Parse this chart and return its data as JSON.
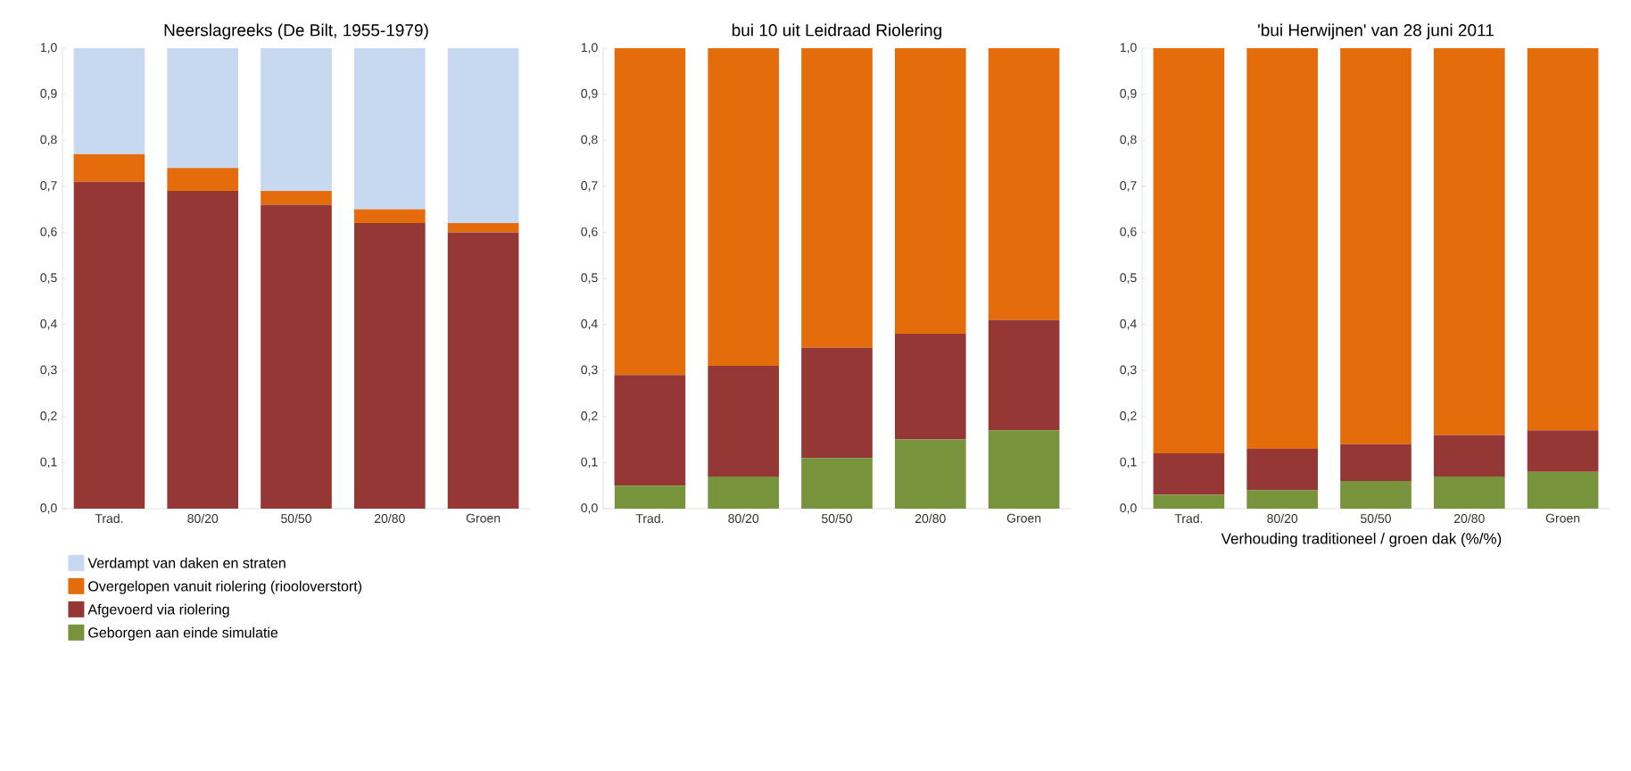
{
  "chart_data": [
    {
      "type": "bar",
      "title": "Neerslagreeks (De Bilt, 1955-1979)",
      "categories": [
        "Trad.",
        "80/20",
        "50/50",
        "20/80",
        "Groen"
      ],
      "stacked": true,
      "legend": "bottom left",
      "series": [
        {
          "name": "Geborgen aan einde simulatie",
          "color": "#77933c",
          "values": [
            0,
            0,
            0,
            0,
            0
          ]
        },
        {
          "name": "Afgevoerd via riolering",
          "color": "#953735",
          "values": [
            0.71,
            0.69,
            0.66,
            0.62,
            0.6
          ]
        },
        {
          "name": "Overgelopen vanuit riolering (riooloverstort)",
          "color": "#e46c0a",
          "values": [
            0.06,
            0.05,
            0.03,
            0.03,
            0.02
          ]
        },
        {
          "name": "Verdampt van daken en straten",
          "color": "#c6d9f1",
          "values": [
            0.23,
            0.26,
            0.31,
            0.35,
            0.38
          ]
        }
      ],
      "ylim": [
        0,
        1
      ],
      "yticks": [
        {
          "value": 0,
          "label": "0,0"
        },
        {
          "value": 0.1,
          "label": "0,1"
        },
        {
          "value": 0.2,
          "label": "0,2"
        },
        {
          "value": 0.3,
          "label": "0,3"
        },
        {
          "value": 0.4,
          "label": "0,4"
        },
        {
          "value": 0.5,
          "label": "0,5"
        },
        {
          "value": 0.6,
          "label": "0,6"
        },
        {
          "value": 0.7,
          "label": "0,7"
        },
        {
          "value": 0.8,
          "label": "0,8"
        },
        {
          "value": 0.9,
          "label": "0,9"
        },
        {
          "value": 1,
          "label": "1,0"
        }
      ]
    },
    {
      "type": "bar",
      "title": "bui 10 uit Leidraad Riolering",
      "categories": [
        "Trad.",
        "80/20",
        "50/50",
        "20/80",
        "Groen"
      ],
      "stacked": true,
      "series": [
        {
          "color": "#77933c",
          "values": [
            0.05,
            0.07,
            0.11,
            0.15,
            0.17
          ]
        },
        {
          "color": "#953735",
          "values": [
            0.24,
            0.24,
            0.24,
            0.23,
            0.24
          ]
        },
        {
          "color": "#e46c0a",
          "values": [
            0.71,
            0.69,
            0.65,
            0.62,
            0.59
          ]
        }
      ],
      "ylim": [
        0,
        1
      ],
      "yticks": [
        {
          "value": 0,
          "label": "0,0"
        },
        {
          "value": 0.1,
          "label": "0,1"
        },
        {
          "value": 0.2,
          "label": "0,2"
        },
        {
          "value": 0.3,
          "label": "0,3"
        },
        {
          "value": 0.4,
          "label": "0,4"
        },
        {
          "value": 0.5,
          "label": "0,5"
        },
        {
          "value": 0.6,
          "label": "0,6"
        },
        {
          "value": 0.7,
          "label": "0,7"
        },
        {
          "value": 0.8,
          "label": "0,8"
        },
        {
          "value": 0.9,
          "label": "0,9"
        },
        {
          "value": 1,
          "label": "1,0"
        }
      ]
    },
    {
      "type": "bar",
      "title": "'bui Herwijnen' van 28 juni 2011",
      "xlabel": "Verhouding traditioneel / groen dak (%/%)",
      "categories": [
        "Trad.",
        "80/20",
        "50/50",
        "20/80",
        "Groen"
      ],
      "stacked": true,
      "series": [
        {
          "color": "#77933c",
          "values": [
            0.03,
            0.04,
            0.06,
            0.07,
            0.08
          ]
        },
        {
          "color": "#953735",
          "values": [
            0.09,
            0.09,
            0.08,
            0.09,
            0.09
          ]
        },
        {
          "color": "#e46c0a",
          "values": [
            0.88,
            0.87,
            0.86,
            0.84,
            0.83
          ]
        }
      ],
      "ylim": [
        0,
        1
      ],
      "yticks": [
        {
          "value": 0,
          "label": "0,0"
        },
        {
          "value": 0.1,
          "label": "0,1"
        },
        {
          "value": 0.2,
          "label": "0,2"
        },
        {
          "value": 0.3,
          "label": "0,3"
        },
        {
          "value": 0.4,
          "label": "0,4"
        },
        {
          "value": 0.5,
          "label": "0,5"
        },
        {
          "value": 0.6,
          "label": "0,6"
        },
        {
          "value": 0.7,
          "label": "0,7"
        },
        {
          "value": 0.8,
          "label": "0,8"
        },
        {
          "value": 0.9,
          "label": "0,9"
        },
        {
          "value": 1,
          "label": "1,0"
        }
      ]
    }
  ]
}
